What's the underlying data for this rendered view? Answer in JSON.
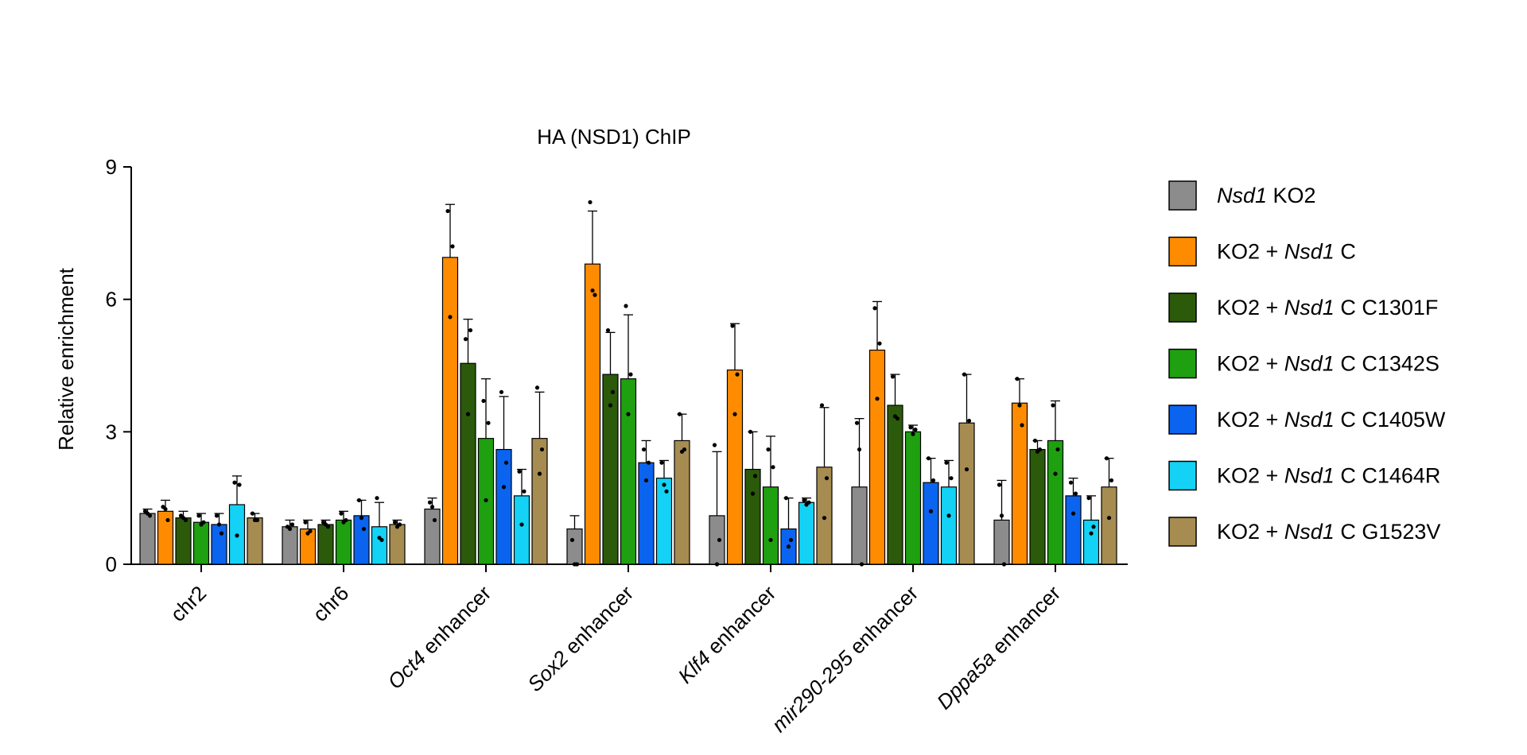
{
  "chart_data": {
    "type": "bar",
    "title": "HA (NSD1) ChIP",
    "xlabel": "",
    "ylabel": "Relative enrichment",
    "ylim": [
      0,
      9
    ],
    "yticks": [
      "0",
      "3",
      "6",
      "9"
    ],
    "grid": false,
    "legend_position": "right",
    "categories": [
      {
        "italic": "",
        "rest": "chr2"
      },
      {
        "italic": "",
        "rest": "chr6"
      },
      {
        "italic": "Oct4",
        "rest": " enhancer"
      },
      {
        "italic": "Sox2",
        "rest": " enhancer"
      },
      {
        "italic": "Klf4",
        "rest": " enhancer"
      },
      {
        "italic": "mir290-295",
        "rest": " enhancer"
      },
      {
        "italic": "Dppa5a",
        "rest": " enhancer"
      }
    ],
    "series": [
      {
        "name_prefix": "",
        "name_italic": "Nsd1",
        "name_suffix": " KO2",
        "color": "#8c8c8c",
        "values": [
          1.15,
          0.85,
          1.25,
          0.8,
          1.1,
          1.75,
          1.0
        ],
        "errors": [
          0.1,
          0.15,
          0.25,
          0.3,
          1.45,
          1.55,
          0.9
        ],
        "points": [
          [
            1.2,
            1.1,
            1.15
          ],
          [
            0.85,
            0.9,
            0.8
          ],
          [
            1.4,
            1.0,
            1.3
          ],
          [
            0.55,
            0.0,
            0.0
          ],
          [
            2.7,
            0.55,
            0.0
          ],
          [
            3.2,
            0.0,
            2.6
          ],
          [
            1.8,
            0.0,
            1.1
          ]
        ]
      },
      {
        "name_prefix": "KO2 + ",
        "name_italic": "Nsd1",
        "name_suffix": " C",
        "color": "#ff8c00",
        "values": [
          1.2,
          0.8,
          6.95,
          6.8,
          4.4,
          4.85,
          3.65
        ],
        "errors": [
          0.25,
          0.2,
          1.2,
          1.2,
          1.05,
          1.1,
          0.55
        ],
        "points": [
          [
            1.3,
            1.0,
            1.25
          ],
          [
            0.95,
            0.75,
            0.7
          ],
          [
            8.0,
            7.2,
            5.6
          ],
          [
            8.2,
            6.1,
            6.2
          ],
          [
            5.4,
            4.3,
            3.4
          ],
          [
            5.8,
            5.0,
            3.75
          ],
          [
            4.2,
            3.15,
            3.6
          ]
        ]
      },
      {
        "name_prefix": "KO2 + ",
        "name_italic": "Nsd1",
        "name_suffix": " C C1301F",
        "color": "#2b5a0a",
        "values": [
          1.05,
          0.9,
          4.55,
          4.3,
          2.15,
          3.6,
          2.6
        ],
        "errors": [
          0.15,
          0.1,
          1.0,
          0.95,
          0.85,
          0.7,
          0.2
        ],
        "points": [
          [
            1.1,
            1.0,
            1.05
          ],
          [
            0.95,
            0.85,
            0.9
          ],
          [
            5.1,
            5.3,
            3.4
          ],
          [
            5.3,
            3.9,
            3.6
          ],
          [
            3.0,
            2.0,
            1.6
          ],
          [
            4.25,
            3.3,
            3.35
          ],
          [
            2.8,
            2.6,
            2.55
          ]
        ]
      },
      {
        "name_prefix": "KO2 + ",
        "name_italic": "Nsd1",
        "name_suffix": " C C1342S",
        "color": "#1ea010",
        "values": [
          0.95,
          1.0,
          2.85,
          4.2,
          1.75,
          3.0,
          2.8
        ],
        "errors": [
          0.2,
          0.2,
          1.35,
          1.45,
          1.15,
          0.15,
          0.9
        ],
        "points": [
          [
            1.1,
            0.95,
            0.9
          ],
          [
            1.15,
            1.0,
            0.95
          ],
          [
            3.7,
            3.2,
            1.45
          ],
          [
            5.85,
            4.3,
            3.4
          ],
          [
            2.6,
            2.2,
            0.55
          ],
          [
            3.1,
            3.05,
            2.95
          ],
          [
            3.6,
            2.6,
            2.05
          ]
        ]
      },
      {
        "name_prefix": "KO2 + ",
        "name_italic": "Nsd1",
        "name_suffix": " C C1405W",
        "color": "#0a64f0",
        "values": [
          0.9,
          1.1,
          2.6,
          2.3,
          0.8,
          1.85,
          1.55
        ],
        "errors": [
          0.25,
          0.35,
          1.2,
          0.5,
          0.7,
          0.55,
          0.4
        ],
        "points": [
          [
            1.1,
            0.7,
            0.9
          ],
          [
            1.45,
            0.8,
            1.05
          ],
          [
            3.9,
            2.3,
            1.75
          ],
          [
            2.6,
            2.3,
            1.9
          ],
          [
            1.5,
            0.55,
            0.4
          ],
          [
            2.4,
            1.9,
            1.2
          ],
          [
            1.85,
            1.6,
            1.15
          ]
        ]
      },
      {
        "name_prefix": "KO2 + ",
        "name_italic": "Nsd1",
        "name_suffix": " C C1464R",
        "color": "#14d2f5",
        "values": [
          1.35,
          0.85,
          1.55,
          1.95,
          1.4,
          1.75,
          1.0
        ],
        "errors": [
          0.65,
          0.55,
          0.6,
          0.4,
          0.1,
          0.6,
          0.55
        ],
        "points": [
          [
            1.85,
            1.8,
            0.65
          ],
          [
            1.5,
            0.55,
            0.6
          ],
          [
            2.1,
            1.65,
            0.9
          ],
          [
            2.3,
            1.65,
            1.8
          ],
          [
            1.45,
            1.4,
            1.35
          ],
          [
            2.3,
            1.95,
            1.1
          ],
          [
            1.5,
            0.85,
            0.7
          ]
        ]
      },
      {
        "name_prefix": "KO2 + ",
        "name_italic": "Nsd1",
        "name_suffix": " C G1523V",
        "color": "#a68c50",
        "values": [
          1.05,
          0.9,
          2.85,
          2.8,
          2.2,
          3.2,
          1.75
        ],
        "errors": [
          0.1,
          0.1,
          1.05,
          0.6,
          1.35,
          1.1,
          0.65
        ],
        "points": [
          [
            1.15,
            1.0,
            1.0
          ],
          [
            0.95,
            0.9,
            0.85
          ],
          [
            4.0,
            2.6,
            2.05
          ],
          [
            3.4,
            2.6,
            2.55
          ],
          [
            3.6,
            1.95,
            1.05
          ],
          [
            4.3,
            3.25,
            2.15
          ],
          [
            2.4,
            1.9,
            1.05
          ]
        ]
      }
    ]
  }
}
